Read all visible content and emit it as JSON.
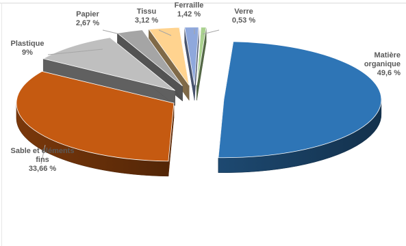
{
  "chart_data": {
    "type": "pie",
    "title": "",
    "exploded": true,
    "three_d": true,
    "slices": [
      {
        "label": "Matière organique",
        "label_lines": [
          "Matière",
          "organique"
        ],
        "value": 49.6,
        "value_text": "49,6 %",
        "color": "#2e75b6"
      },
      {
        "label": "Sable et éléments fins",
        "label_lines": [
          "Sable et éléments",
          "fins"
        ],
        "value": 33.66,
        "value_text": "33,66 %",
        "color": "#c55a11"
      },
      {
        "label": "Plastique",
        "label_lines": [
          "Plastique"
        ],
        "value": 9,
        "value_text": "9%",
        "color": "#bfbfbf"
      },
      {
        "label": "Papier",
        "label_lines": [
          "Papier"
        ],
        "value": 2.67,
        "value_text": "2,67 %",
        "color": "#a5a5a5"
      },
      {
        "label": "Tissu",
        "label_lines": [
          "Tissu"
        ],
        "value": 3.12,
        "value_text": "3,12 %",
        "color": "#ffd38f"
      },
      {
        "label": "Ferraille",
        "label_lines": [
          "Ferraille"
        ],
        "value": 1.42,
        "value_text": "1,42 %",
        "color": "#8fa8dc"
      },
      {
        "label": "Verre",
        "label_lines": [
          "Verre"
        ],
        "value": 0.53,
        "value_text": "0,53 %",
        "color": "#a9d18e"
      }
    ]
  }
}
